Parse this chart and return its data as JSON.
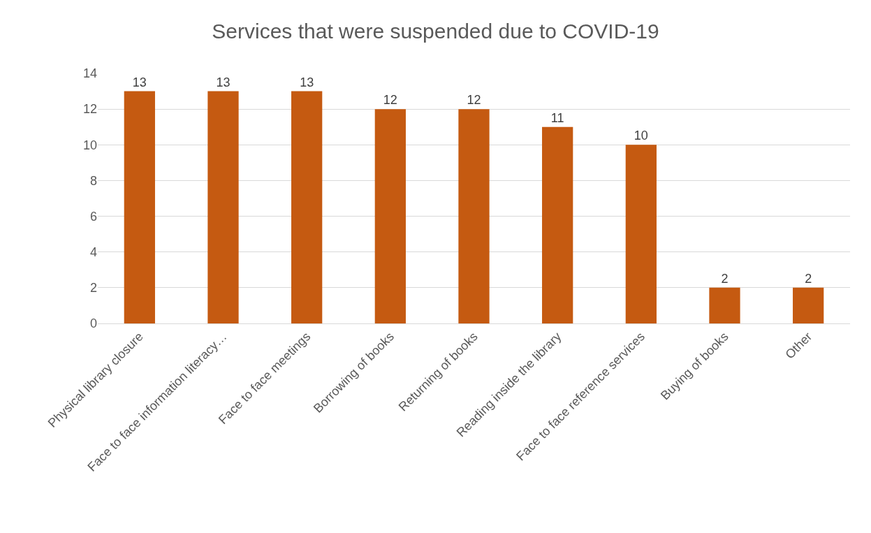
{
  "chart_data": {
    "type": "bar",
    "title": "Services that were suspended due to COVID-19",
    "categories": [
      "Physical library closure",
      "Face to face information literacy…",
      "Face to face meetings",
      "Borrowing of books",
      "Returning of books",
      "Reading inside the library",
      "Face to face reference services",
      "Buying of books",
      "Other"
    ],
    "values": [
      13,
      13,
      13,
      12,
      12,
      11,
      10,
      2,
      2
    ],
    "color": "#c55a11",
    "ylim": [
      0,
      14
    ],
    "yticks": [
      0,
      2,
      4,
      6,
      8,
      10,
      12,
      14
    ],
    "grid": "y",
    "data_labels": true
  }
}
